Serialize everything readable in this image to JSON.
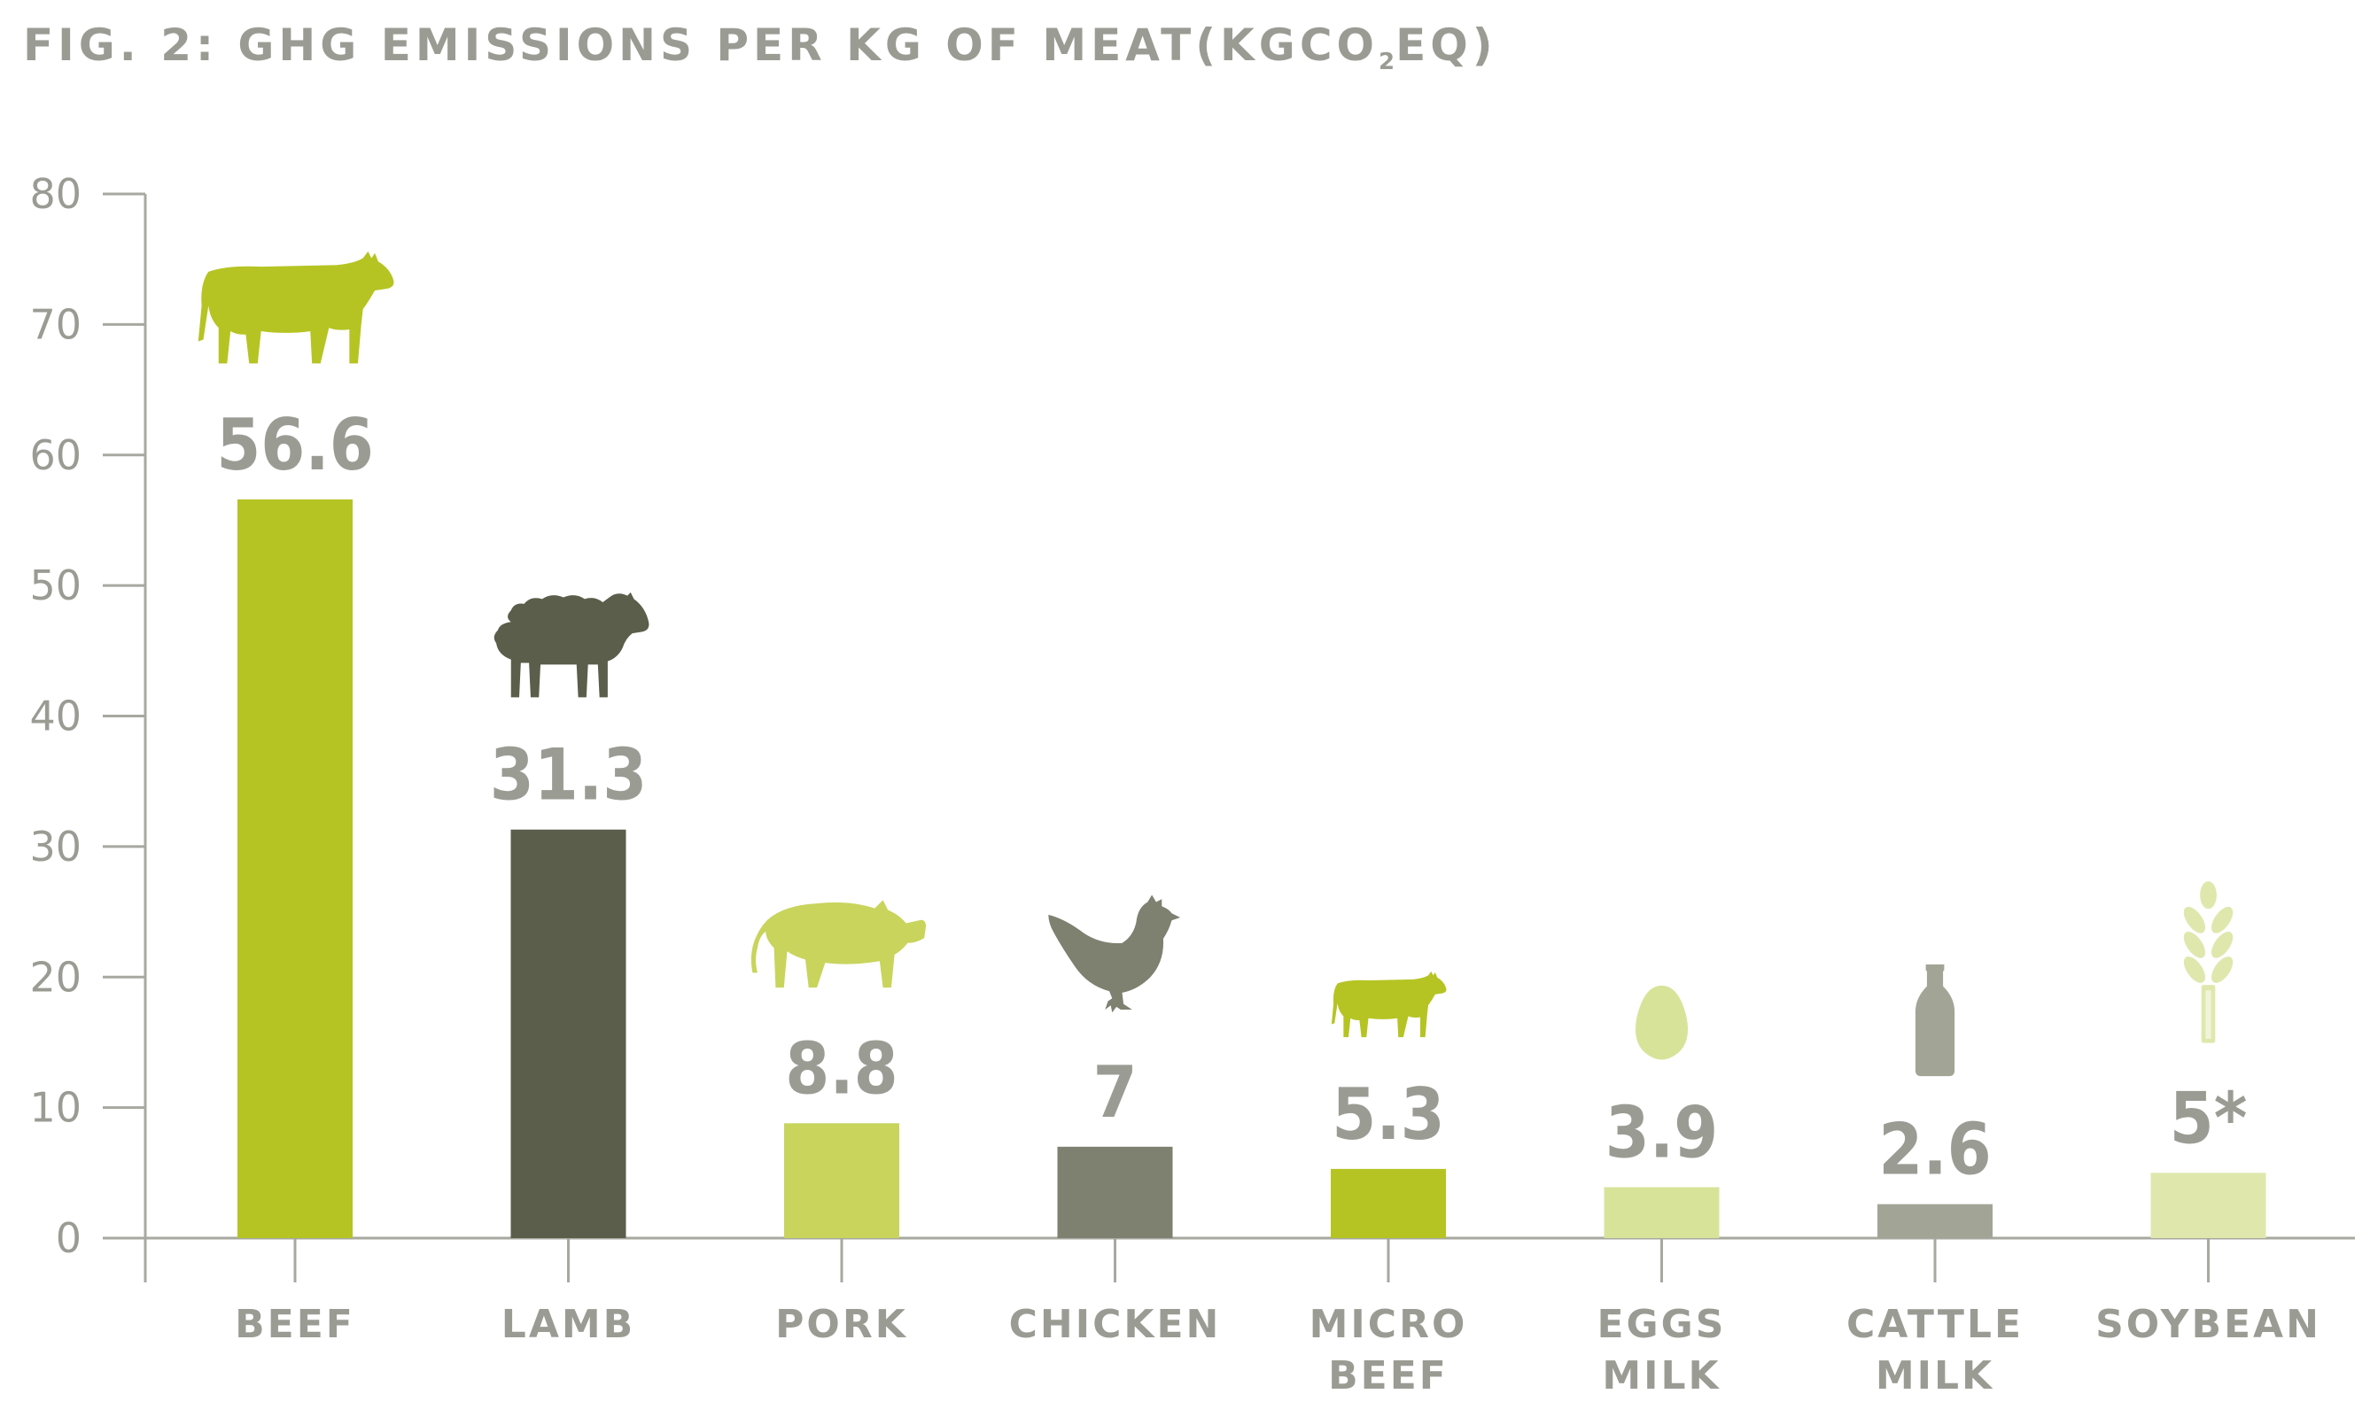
{
  "title": {
    "main": "FIG. 2: GHG EMISSIONS PER KG OF MEAT(KGCO",
    "subscript": "2",
    "suffix": "EQ)"
  },
  "chart_data": {
    "type": "bar",
    "ylim": [
      0,
      80
    ],
    "yticks": [
      0,
      10,
      20,
      30,
      40,
      50,
      60,
      70,
      80
    ],
    "grid": false,
    "categories": [
      {
        "label": [
          "BEEF"
        ],
        "value": 56.6,
        "value_label": "56.6",
        "color": "#b5c423",
        "icon": "cow-icon",
        "icon_color": "#b5c423"
      },
      {
        "label": [
          "LAMB"
        ],
        "value": 31.3,
        "value_label": "31.3",
        "color": "#5a5e4a",
        "icon": "sheep-icon",
        "icon_color": "#5a5e4a"
      },
      {
        "label": [
          "PORK"
        ],
        "value": 8.8,
        "value_label": "8.8",
        "color": "#c8d45c",
        "icon": "pig-icon",
        "icon_color": "#c8d45c"
      },
      {
        "label": [
          "CHICKEN"
        ],
        "value": 7,
        "value_label": "7",
        "color": "#7e8170",
        "icon": "chicken-icon",
        "icon_color": "#7e8170"
      },
      {
        "label": [
          "MICRO",
          "BEEF"
        ],
        "value": 5.3,
        "value_label": "5.3",
        "color": "#b5c423",
        "icon": "cow-icon",
        "icon_color": "#b5c423"
      },
      {
        "label": [
          "EGGS",
          "MILK"
        ],
        "value": 3.9,
        "value_label": "3.9",
        "color": "#d8e39a",
        "icon": "egg-icon",
        "icon_color": "#d8e39a"
      },
      {
        "label": [
          "CATTLE",
          "MILK"
        ],
        "value": 2.6,
        "value_label": "2.6",
        "color": "#a2a596",
        "icon": "milk-bottle-icon",
        "icon_color": "#a2a596"
      },
      {
        "label": [
          "SOYBEAN"
        ],
        "value": 5,
        "value_label": "5*",
        "color": "#dfe7ad",
        "icon": "wheat-icon",
        "icon_color": "#dfe7ad"
      }
    ]
  }
}
